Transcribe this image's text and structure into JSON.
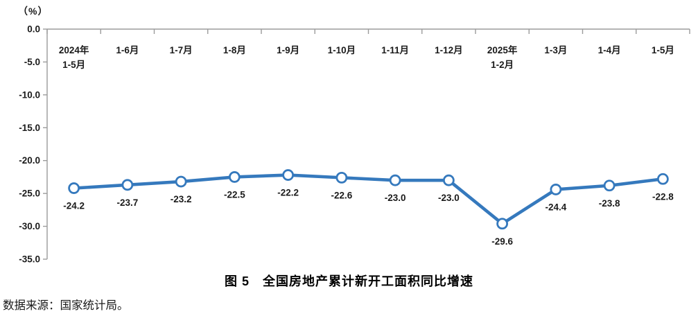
{
  "figure": {
    "source": "数据来源：国家统计局。"
  },
  "chart_data": {
    "type": "line",
    "title": "图 5　全国房地产累计新开工面积同比增速",
    "unit": "（%）",
    "categories": [
      "2024年\n1-5月",
      "1-6月",
      "1-7月",
      "1-8月",
      "1-9月",
      "1-10月",
      "1-11月",
      "1-12月",
      "2025年\n1-2月",
      "1-3月",
      "1-4月",
      "1-5月"
    ],
    "values": [
      -24.2,
      -23.7,
      -23.2,
      -22.5,
      -22.2,
      -22.6,
      -23.0,
      -23.0,
      -29.6,
      -24.4,
      -23.8,
      -22.8
    ],
    "value_labels": [
      "-24.2",
      "-23.7",
      "-23.2",
      "-22.5",
      "-22.2",
      "-22.6",
      "-23.0",
      "-23.0",
      "-29.6",
      "-24.4",
      "-23.8",
      "-22.8"
    ],
    "ylim": [
      -35,
      0
    ],
    "ytick_step": 5,
    "ytick_labels": [
      "0.0",
      "-5.0",
      "-10.0",
      "-15.0",
      "-20.0",
      "-25.0",
      "-30.0",
      "-35.0"
    ],
    "category_axis_position": "top",
    "grid": false,
    "legend": "none",
    "colors": {
      "line": "#3579BD",
      "marker_fill": "#FFFFFF",
      "axis": "#9B9B9B",
      "text": "#1A1A1A"
    }
  }
}
